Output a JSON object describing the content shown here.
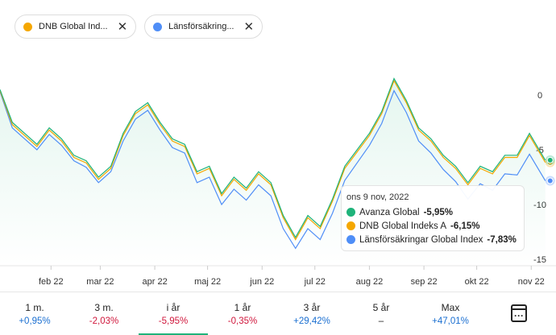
{
  "legend_chips": [
    {
      "label": "DNB Global Ind...",
      "color": "#f5a700"
    },
    {
      "label": "Länsförsäkring...",
      "color": "#4f8ef7"
    }
  ],
  "chart_data": {
    "type": "line",
    "y_ticks": [
      0,
      -5,
      -10,
      -15
    ],
    "ylim": [
      -15.3,
      1.5
    ],
    "x_ticks": [
      {
        "label": "feb 22",
        "date": "2022-02-01"
      },
      {
        "label": "mar 22",
        "date": "2022-03-01"
      },
      {
        "label": "apr 22",
        "date": "2022-04-01"
      },
      {
        "label": "maj 22",
        "date": "2022-05-01"
      },
      {
        "label": "jun 22",
        "date": "2022-06-01"
      },
      {
        "label": "jul 22",
        "date": "2022-07-01"
      },
      {
        "label": "aug 22",
        "date": "2022-08-01"
      },
      {
        "label": "sep 22",
        "date": "2022-09-01"
      },
      {
        "label": "okt 22",
        "date": "2022-10-01"
      },
      {
        "label": "nov 22",
        "date": "2022-11-01"
      }
    ],
    "dates": [
      "2022-01-03",
      "2022-01-10",
      "2022-01-17",
      "2022-01-24",
      "2022-01-31",
      "2022-02-07",
      "2022-02-14",
      "2022-02-21",
      "2022-02-28",
      "2022-03-07",
      "2022-03-14",
      "2022-03-21",
      "2022-03-28",
      "2022-04-04",
      "2022-04-11",
      "2022-04-18",
      "2022-04-25",
      "2022-05-02",
      "2022-05-09",
      "2022-05-16",
      "2022-05-23",
      "2022-05-30",
      "2022-06-06",
      "2022-06-13",
      "2022-06-20",
      "2022-06-27",
      "2022-07-04",
      "2022-07-11",
      "2022-07-18",
      "2022-07-25",
      "2022-08-01",
      "2022-08-08",
      "2022-08-15",
      "2022-08-22",
      "2022-08-29",
      "2022-09-05",
      "2022-09-12",
      "2022-09-19",
      "2022-09-26",
      "2022-10-03",
      "2022-10-10",
      "2022-10-17",
      "2022-10-24",
      "2022-10-31",
      "2022-11-09"
    ],
    "series": [
      {
        "name": "Avanza Global",
        "color": "#1fb37a",
        "values": [
          0.5,
          -2.5,
          -3.5,
          -4.5,
          -3,
          -4,
          -5.5,
          -6,
          -7.5,
          -6.5,
          -3.5,
          -1.5,
          -0.7,
          -2.5,
          -4,
          -4.5,
          -7,
          -6.5,
          -9,
          -7.5,
          -8.5,
          -7,
          -8,
          -11,
          -13,
          -11,
          -12,
          -9.5,
          -6.5,
          -5,
          -3.5,
          -1.5,
          1.5,
          -0.5,
          -3,
          -4,
          -5.5,
          -6.5,
          -8,
          -6.5,
          -7,
          -5.5,
          -5.5,
          -3.5,
          -5.95
        ]
      },
      {
        "name": "DNB Global Indeks A",
        "color": "#f5a700",
        "values": [
          0.4,
          -2.7,
          -3.7,
          -4.7,
          -3.2,
          -4.2,
          -5.7,
          -6.2,
          -7.7,
          -6.7,
          -3.7,
          -1.7,
          -0.9,
          -2.7,
          -4.2,
          -4.7,
          -7.2,
          -6.7,
          -9.2,
          -7.7,
          -8.7,
          -7.2,
          -8.2,
          -11.2,
          -13.2,
          -11.2,
          -12.2,
          -9.7,
          -6.7,
          -5.2,
          -3.7,
          -1.7,
          1.3,
          -0.7,
          -3.2,
          -4.2,
          -5.7,
          -6.7,
          -8.2,
          -6.7,
          -7.2,
          -5.7,
          -5.7,
          -3.7,
          -6.15
        ]
      },
      {
        "name": "Länsförsäkringar Global Index",
        "color": "#4f8ef7",
        "values": [
          0.3,
          -3,
          -4,
          -5,
          -3.6,
          -4.6,
          -6,
          -6.6,
          -8,
          -7,
          -4.2,
          -2.2,
          -1.4,
          -3.2,
          -4.8,
          -5.3,
          -8,
          -7.5,
          -10,
          -8.6,
          -9.6,
          -8.2,
          -9.2,
          -12.2,
          -14,
          -12.2,
          -13.2,
          -10.8,
          -7.8,
          -6.2,
          -4.6,
          -2.6,
          0.4,
          -1.6,
          -4.2,
          -5.3,
          -6.8,
          -7.9,
          -9.5,
          -8.1,
          -8.7,
          -7.2,
          -7.3,
          -5.4,
          -7.83
        ]
      }
    ]
  },
  "tooltip": {
    "date": "ons 9 nov, 2022",
    "rows": [
      {
        "name": "Avanza Global",
        "value": "-5,95%",
        "color": "#1fb37a"
      },
      {
        "name": "DNB Global Indeks A",
        "value": "-6,15%",
        "color": "#f5a700"
      },
      {
        "name": "Länsförsäkringar Global Index",
        "value": "-7,83%",
        "color": "#4f8ef7"
      }
    ]
  },
  "periods": [
    {
      "label": "1 m.",
      "value": "+0,95%",
      "color": "#1a6fd1"
    },
    {
      "label": "3 m.",
      "value": "-2,03%",
      "color": "#d0173c"
    },
    {
      "label": "i år",
      "value": "-5,95%",
      "color": "#d0173c",
      "active": true
    },
    {
      "label": "1 år",
      "value": "-0,35%",
      "color": "#d0173c"
    },
    {
      "label": "3 år",
      "value": "+29,42%",
      "color": "#1a6fd1"
    },
    {
      "label": "5 år",
      "value": "–",
      "color": "#222"
    },
    {
      "label": "Max",
      "value": "+47,01%",
      "color": "#1a6fd1"
    }
  ],
  "calendar_icon": "calendar-icon"
}
